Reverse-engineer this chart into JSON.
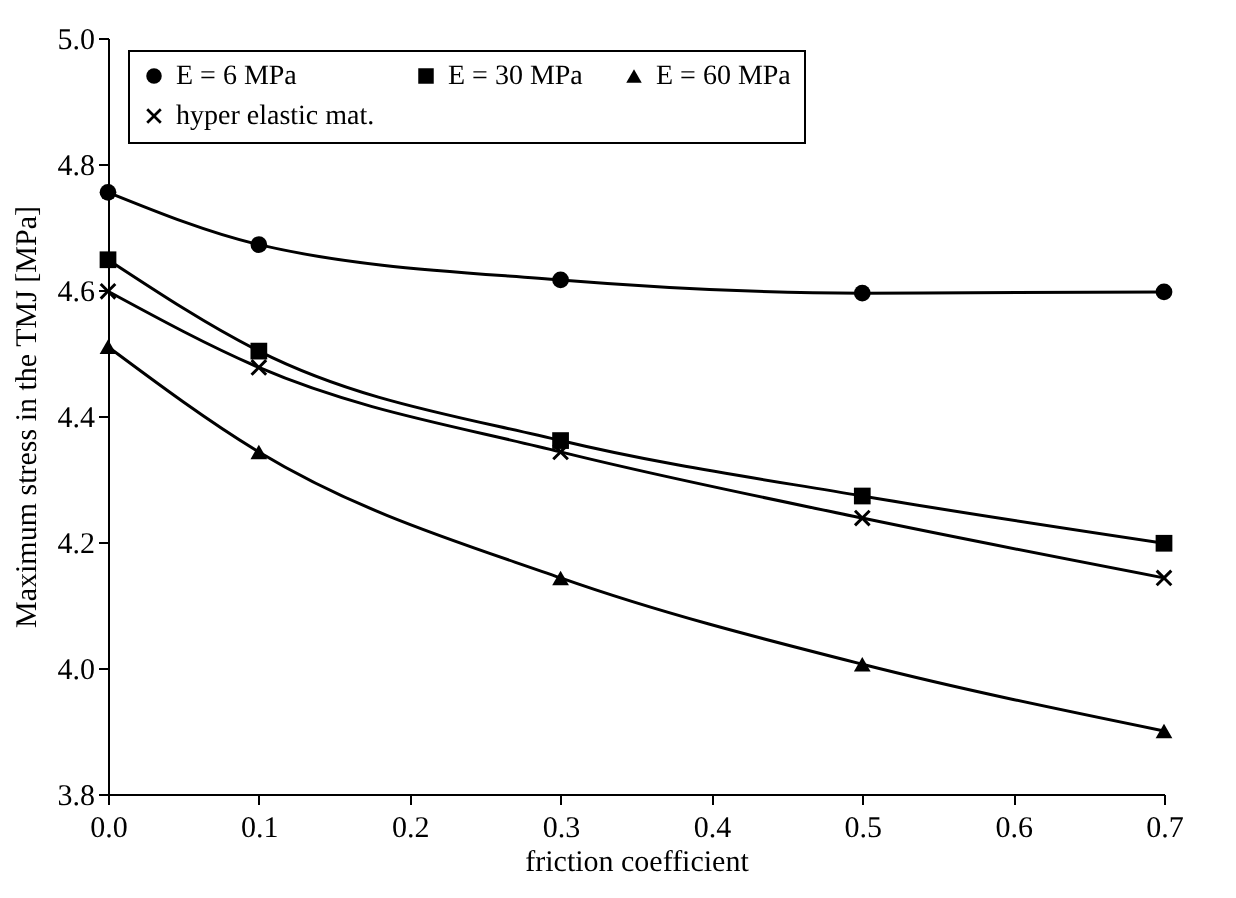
{
  "chart_data": {
    "type": "line",
    "xlabel": "friction coefficient",
    "ylabel": "Maximum stress in the TMJ [MPa]",
    "x": [
      0.0,
      0.1,
      0.3,
      0.5,
      0.7
    ],
    "series": [
      {
        "name": "E = 6 MPa",
        "color": "#000000",
        "marker": "circle",
        "values": [
          4.755,
          4.672,
          4.616,
          4.595,
          4.597
        ]
      },
      {
        "name": "E = 30 MPa",
        "color": "#000000",
        "marker": "square",
        "values": [
          4.648,
          4.503,
          4.361,
          4.273,
          4.198
        ]
      },
      {
        "name": "E = 60 MPa",
        "color": "#000000",
        "marker": "triangle",
        "values": [
          4.51,
          4.343,
          4.143,
          4.006,
          3.9
        ]
      },
      {
        "name": "hyper elastic mat.",
        "color": "#000000",
        "marker": "cross",
        "values": [
          4.598,
          4.477,
          4.343,
          4.238,
          4.143
        ]
      }
    ],
    "xlim": [
      0.0,
      0.7
    ],
    "xticks": [
      {
        "value": 0.0,
        "label": "0.0"
      },
      {
        "value": 0.1,
        "label": "0.1"
      },
      {
        "value": 0.2,
        "label": "0.2"
      },
      {
        "value": 0.3,
        "label": "0.3"
      },
      {
        "value": 0.4,
        "label": "0.4"
      },
      {
        "value": 0.5,
        "label": "0.5"
      },
      {
        "value": 0.6,
        "label": "0.6"
      },
      {
        "value": 0.7,
        "label": "0.7"
      }
    ],
    "ylim": [
      3.8,
      5.0
    ],
    "yticks": [
      {
        "value": 3.8,
        "label": "3.8"
      },
      {
        "value": 4.0,
        "label": "4.0"
      },
      {
        "value": 4.2,
        "label": "4.2"
      },
      {
        "value": 4.4,
        "label": "4.4"
      },
      {
        "value": 4.6,
        "label": "4.6"
      },
      {
        "value": 4.8,
        "label": "4.8"
      },
      {
        "value": 5.0,
        "label": "5.0"
      }
    ],
    "grid": false,
    "legend": "top left",
    "line_style": "solid"
  }
}
